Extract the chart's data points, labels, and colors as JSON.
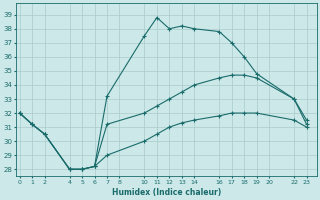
{
  "xlabel": "Humidex (Indice chaleur)",
  "bg_color": "#cce8e8",
  "grid_color": "#b8d8d8",
  "line_color": "#1a6b6b",
  "series": [
    {
      "x": [
        0,
        1,
        2,
        4,
        5,
        6,
        7,
        10,
        11,
        12,
        13,
        14,
        16,
        17,
        18,
        19,
        22,
        23
      ],
      "y": [
        32,
        31.2,
        30.5,
        28,
        28,
        28.2,
        33.2,
        37.5,
        38.8,
        38.0,
        38.2,
        38.0,
        37.8,
        37.0,
        36.0,
        34.8,
        33.0,
        31.2
      ]
    },
    {
      "x": [
        0,
        1,
        2,
        4,
        5,
        6,
        7,
        10,
        11,
        12,
        13,
        14,
        16,
        17,
        18,
        19,
        22,
        23
      ],
      "y": [
        32,
        31.2,
        30.5,
        28,
        28,
        28.2,
        31.2,
        32.0,
        32.5,
        33.0,
        33.5,
        34.0,
        34.5,
        34.7,
        34.7,
        34.5,
        33.0,
        31.5
      ]
    },
    {
      "x": [
        0,
        1,
        2,
        4,
        5,
        6,
        7,
        10,
        11,
        12,
        13,
        14,
        16,
        17,
        18,
        19,
        22,
        23
      ],
      "y": [
        32,
        31.2,
        30.5,
        28,
        28,
        28.2,
        29.0,
        30.0,
        30.5,
        31.0,
        31.3,
        31.5,
        31.8,
        32.0,
        32.0,
        32.0,
        31.5,
        31.0
      ]
    }
  ],
  "xticks": [
    0,
    1,
    2,
    4,
    5,
    6,
    7,
    8,
    10,
    11,
    12,
    13,
    14,
    16,
    17,
    18,
    19,
    20,
    22,
    23
  ],
  "yticks": [
    28,
    29,
    30,
    31,
    32,
    33,
    34,
    35,
    36,
    37,
    38,
    39
  ],
  "xlim": [
    -0.3,
    23.8
  ],
  "ylim": [
    27.5,
    39.8
  ]
}
